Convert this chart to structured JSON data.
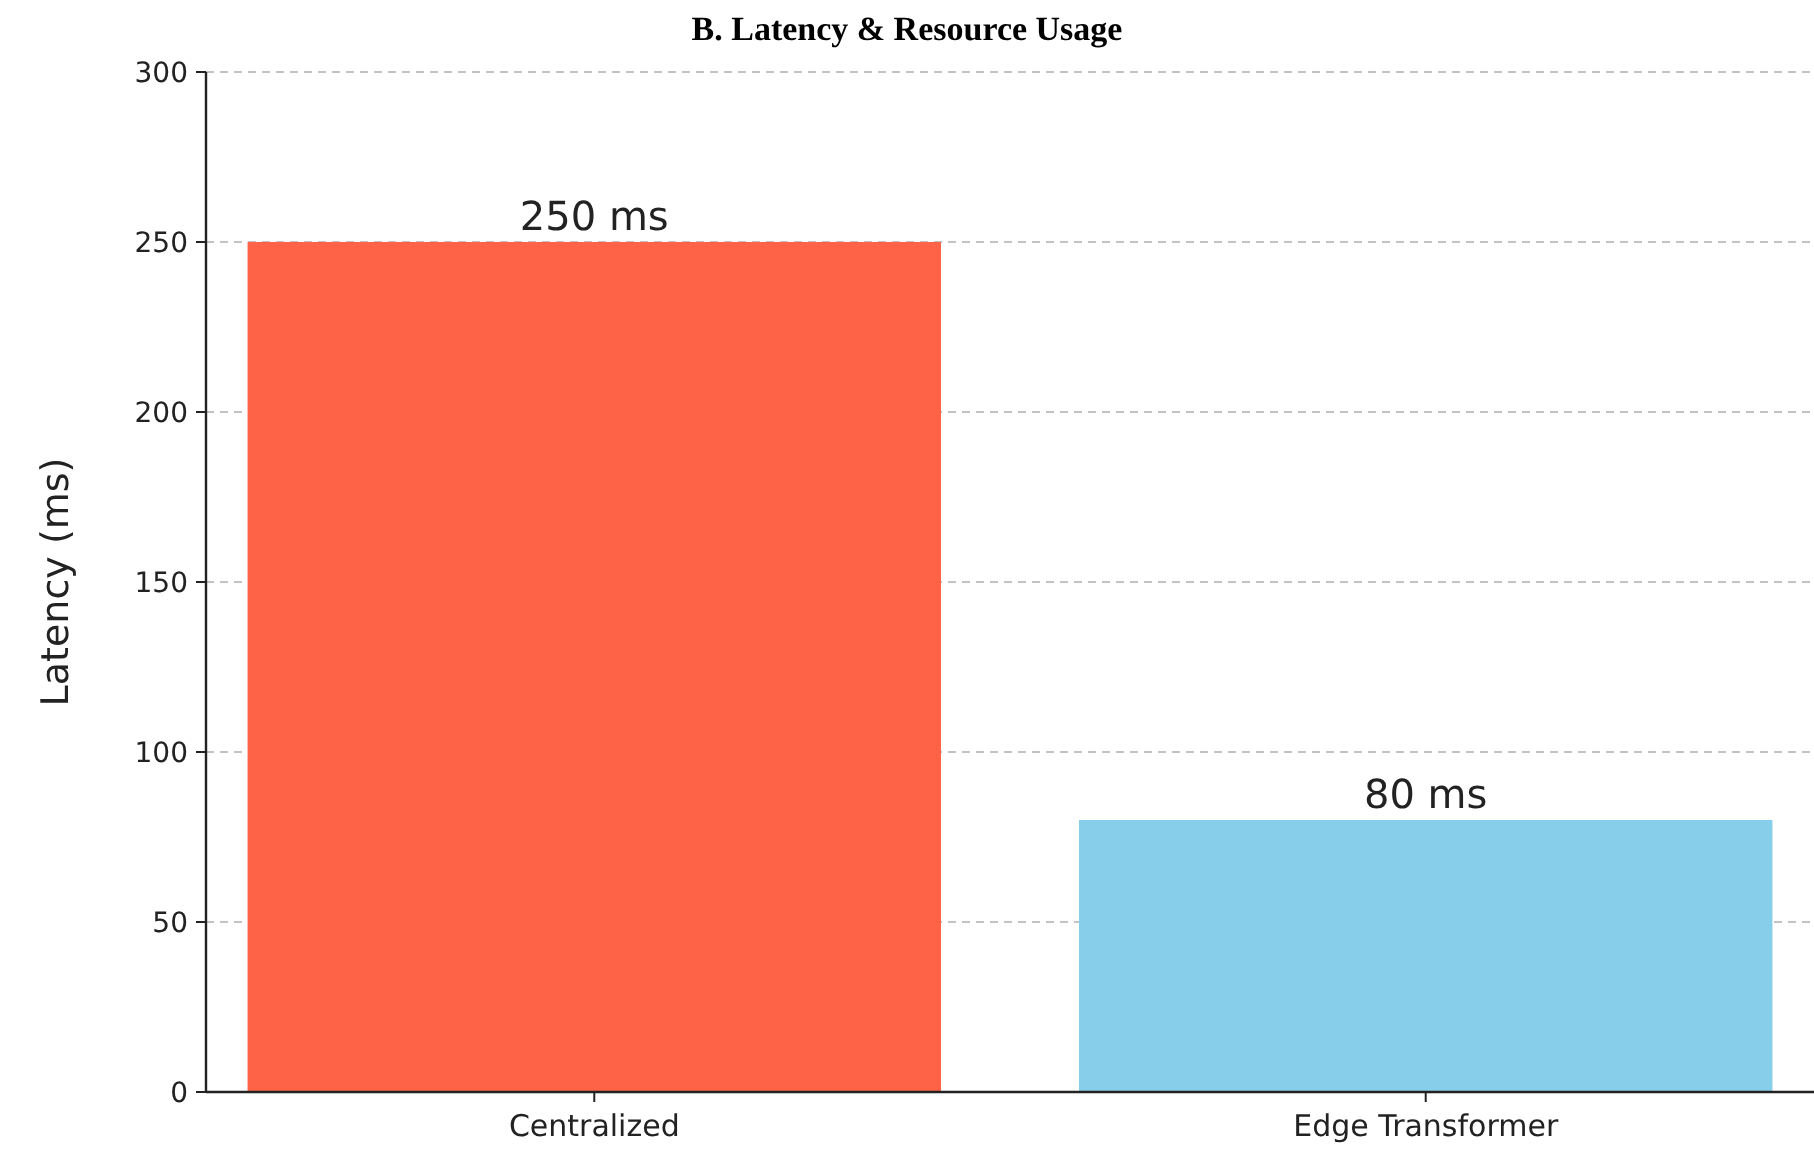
{
  "chart_data": {
    "type": "bar",
    "title": "B. Latency & Resource Usage",
    "ylabel": "Latency (ms)",
    "categories": [
      "Centralized",
      "Edge Transformer"
    ],
    "values": [
      250,
      80
    ],
    "colors": [
      "#ff6347",
      "#87ceeb"
    ],
    "value_labels": [
      "250 ms",
      "80 ms"
    ],
    "ylim": [
      0,
      300
    ],
    "yticks": [
      0,
      50,
      100,
      150,
      200,
      250,
      300
    ],
    "grid": "y"
  }
}
